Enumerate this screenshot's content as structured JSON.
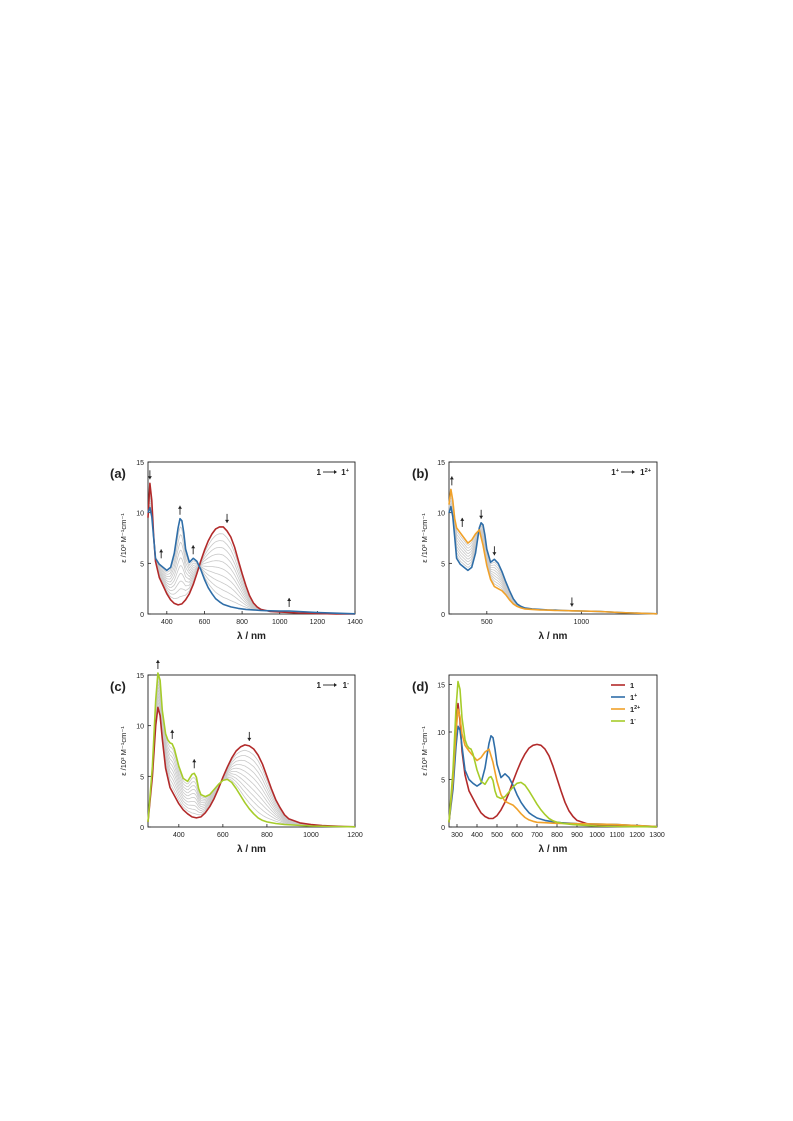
{
  "colors": {
    "neutral": "#b22a2a",
    "cation": "#2f6ea8",
    "dication": "#f0a12a",
    "anion": "#a6cc2a",
    "intermediate": "#c9c9c9",
    "axis": "#222222"
  },
  "chart_data": [
    {
      "id": "a",
      "type": "line",
      "panel_label": "(a)",
      "annotation": {
        "from": "1",
        "to": "1",
        "to_sup": "+"
      },
      "xlabel": "λ / nm",
      "ylabel": "ε /10³ M⁻¹cm⁻¹",
      "xlim": [
        300,
        1400
      ],
      "ylim": [
        0,
        15
      ],
      "xticks": [
        400,
        600,
        800,
        1000,
        1200,
        1400
      ],
      "yticks": [
        0,
        5,
        10,
        15
      ],
      "intermediates": 10,
      "series": [
        {
          "key": "neutral",
          "x": [
            300,
            310,
            320,
            330,
            340,
            360,
            380,
            400,
            420,
            440,
            460,
            480,
            500,
            520,
            540,
            560,
            580,
            600,
            620,
            640,
            660,
            680,
            700,
            720,
            740,
            760,
            780,
            800,
            820,
            840,
            860,
            880,
            900,
            950,
            1000,
            1050,
            1100,
            1200,
            1300,
            1400
          ],
          "y": [
            9.5,
            12.9,
            11.2,
            7.8,
            5.2,
            3.6,
            2.8,
            2.0,
            1.4,
            1.05,
            0.9,
            1.0,
            1.4,
            2.0,
            2.9,
            4.0,
            5.2,
            6.3,
            7.2,
            7.9,
            8.4,
            8.6,
            8.6,
            8.2,
            7.6,
            6.6,
            5.3,
            4.0,
            2.8,
            1.8,
            1.1,
            0.7,
            0.45,
            0.25,
            0.2,
            0.15,
            0.1,
            0.05,
            0.0,
            0.0
          ]
        },
        {
          "key": "cation",
          "x": [
            300,
            310,
            320,
            330,
            340,
            360,
            380,
            400,
            420,
            440,
            460,
            470,
            480,
            490,
            500,
            520,
            540,
            560,
            580,
            600,
            620,
            640,
            660,
            680,
            700,
            740,
            780,
            820,
            860,
            900,
            950,
            1000,
            1050,
            1100,
            1200,
            1300,
            1400
          ],
          "y": [
            10.0,
            10.5,
            9.6,
            7.6,
            5.5,
            4.9,
            4.6,
            4.3,
            4.6,
            6.0,
            8.5,
            9.4,
            9.2,
            8.0,
            6.4,
            5.1,
            5.5,
            5.2,
            4.4,
            3.4,
            2.6,
            2.0,
            1.5,
            1.2,
            0.95,
            0.7,
            0.55,
            0.45,
            0.4,
            0.35,
            0.32,
            0.3,
            0.3,
            0.25,
            0.15,
            0.08,
            0.02
          ]
        }
      ],
      "arrows": [
        {
          "x": 310,
          "y": 12.9,
          "dir": "down"
        },
        {
          "x": 370,
          "y": 5.1,
          "dir": "up"
        },
        {
          "x": 470,
          "y": 9.4,
          "dir": "up"
        },
        {
          "x": 540,
          "y": 5.5,
          "dir": "up"
        },
        {
          "x": 720,
          "y": 8.6,
          "dir": "down"
        },
        {
          "x": 1050,
          "y": 0.3,
          "dir": "up"
        }
      ]
    },
    {
      "id": "b",
      "type": "line",
      "panel_label": "(b)",
      "annotation": {
        "from": "1",
        "from_sup": "+",
        "to": "1",
        "to_sup": "2+"
      },
      "xlabel": "λ / nm",
      "ylabel": "ε /10³ M⁻¹cm⁻¹",
      "xlim": [
        300,
        1400
      ],
      "ylim": [
        0,
        15
      ],
      "xticks": [
        500,
        1000
      ],
      "yticks": [
        0,
        5,
        10,
        15
      ],
      "intermediates": 9,
      "series": [
        {
          "key": "cation",
          "x": [
            300,
            310,
            320,
            330,
            340,
            360,
            380,
            400,
            420,
            440,
            460,
            470,
            480,
            490,
            500,
            520,
            540,
            560,
            580,
            600,
            620,
            640,
            660,
            680,
            700,
            740,
            780,
            820,
            860,
            900,
            950,
            1000,
            1100,
            1200,
            1300,
            1400
          ],
          "y": [
            10.0,
            10.6,
            9.6,
            7.6,
            5.5,
            4.9,
            4.6,
            4.3,
            4.6,
            6.0,
            8.5,
            9.0,
            8.8,
            7.8,
            6.4,
            5.1,
            5.4,
            5.0,
            4.2,
            3.2,
            2.3,
            1.5,
            1.0,
            0.75,
            0.6,
            0.5,
            0.45,
            0.4,
            0.38,
            0.35,
            0.32,
            0.3,
            0.25,
            0.15,
            0.08,
            0.02
          ]
        },
        {
          "key": "dication",
          "x": [
            300,
            310,
            320,
            330,
            340,
            360,
            380,
            400,
            420,
            440,
            460,
            480,
            500,
            520,
            540,
            560,
            580,
            600,
            620,
            640,
            660,
            680,
            700,
            740,
            780,
            820,
            860,
            900,
            950,
            1000,
            1100,
            1200,
            1300,
            1400
          ],
          "y": [
            10.8,
            12.3,
            11.2,
            9.4,
            8.5,
            8.0,
            7.5,
            7.0,
            7.3,
            7.9,
            8.3,
            6.8,
            4.8,
            3.4,
            2.7,
            2.5,
            2.3,
            1.9,
            1.4,
            1.0,
            0.75,
            0.6,
            0.5,
            0.45,
            0.4,
            0.38,
            0.36,
            0.35,
            0.32,
            0.3,
            0.25,
            0.15,
            0.08,
            0.02
          ]
        }
      ],
      "arrows": [
        {
          "x": 315,
          "y": 12.3,
          "dir": "up"
        },
        {
          "x": 370,
          "y": 8.2,
          "dir": "up"
        },
        {
          "x": 470,
          "y": 9.0,
          "dir": "down"
        },
        {
          "x": 540,
          "y": 5.4,
          "dir": "down"
        },
        {
          "x": 950,
          "y": 0.35,
          "dir": "down"
        }
      ]
    },
    {
      "id": "c",
      "type": "line",
      "panel_label": "(c)",
      "annotation": {
        "from": "1",
        "to": "1",
        "to_sup": "-"
      },
      "xlabel": "λ / nm",
      "ylabel": "ε /10³ M⁻¹cm⁻¹",
      "xlim": [
        260,
        1200
      ],
      "ylim": [
        0,
        15
      ],
      "xticks": [
        400,
        600,
        800,
        1000,
        1200
      ],
      "yticks": [
        0,
        5,
        10,
        15
      ],
      "intermediates": 10,
      "series": [
        {
          "key": "neutral",
          "x": [
            260,
            280,
            295,
            305,
            315,
            325,
            340,
            360,
            380,
            400,
            420,
            440,
            460,
            480,
            500,
            520,
            540,
            560,
            580,
            600,
            620,
            640,
            660,
            680,
            700,
            720,
            740,
            760,
            780,
            800,
            820,
            840,
            860,
            880,
            900,
            950,
            1000,
            1050,
            1100,
            1150,
            1200
          ],
          "y": [
            0.5,
            5.0,
            10.0,
            11.8,
            11.0,
            8.7,
            5.8,
            3.9,
            3.1,
            2.3,
            1.7,
            1.3,
            1.0,
            0.9,
            1.0,
            1.4,
            2.0,
            2.8,
            3.8,
            4.9,
            5.9,
            6.8,
            7.5,
            7.9,
            8.1,
            8.0,
            7.7,
            7.1,
            6.2,
            5.0,
            3.8,
            2.7,
            1.9,
            1.2,
            0.8,
            0.4,
            0.25,
            0.15,
            0.1,
            0.05,
            0.02
          ]
        },
        {
          "key": "anion",
          "x": [
            260,
            280,
            295,
            305,
            315,
            325,
            340,
            350,
            360,
            370,
            380,
            400,
            420,
            440,
            460,
            470,
            480,
            490,
            500,
            520,
            540,
            560,
            580,
            600,
            620,
            640,
            660,
            680,
            700,
            720,
            740,
            760,
            780,
            800,
            840,
            880,
            920,
            960,
            1000,
            1100,
            1200
          ],
          "y": [
            0.5,
            6.0,
            12.5,
            15.2,
            14.5,
            11.5,
            9.2,
            8.6,
            8.3,
            8.2,
            7.7,
            6.0,
            4.8,
            4.5,
            5.2,
            5.3,
            4.9,
            3.8,
            3.2,
            3.0,
            3.2,
            3.7,
            4.2,
            4.6,
            4.7,
            4.4,
            3.8,
            3.1,
            2.4,
            1.8,
            1.3,
            0.9,
            0.65,
            0.5,
            0.35,
            0.25,
            0.2,
            0.15,
            0.1,
            0.05,
            0.02
          ]
        }
      ],
      "arrows": [
        {
          "x": 305,
          "y": 15.2,
          "dir": "up"
        },
        {
          "x": 370,
          "y": 8.3,
          "dir": "up"
        },
        {
          "x": 470,
          "y": 5.4,
          "dir": "up"
        },
        {
          "x": 720,
          "y": 8.1,
          "dir": "down"
        }
      ]
    },
    {
      "id": "d",
      "type": "line",
      "panel_label": "(d)",
      "xlabel": "λ / nm",
      "ylabel": "ε /10³ M⁻¹cm⁻¹",
      "xlim": [
        260,
        1300
      ],
      "ylim": [
        0,
        16
      ],
      "xticks": [
        300,
        400,
        500,
        600,
        700,
        800,
        900,
        1000,
        1100,
        1200,
        1300
      ],
      "yticks": [
        0,
        5,
        10,
        15
      ],
      "legend": {
        "placement": "top-right",
        "entries": [
          {
            "key": "neutral",
            "label": "1",
            "sup": ""
          },
          {
            "key": "cation",
            "label": "1",
            "sup": "+"
          },
          {
            "key": "dication",
            "label": "1",
            "sup": "2+"
          },
          {
            "key": "anion",
            "label": "1",
            "sup": "-"
          }
        ]
      },
      "series": [
        {
          "key": "neutral",
          "x": [
            260,
            280,
            295,
            305,
            315,
            325,
            340,
            360,
            380,
            400,
            420,
            440,
            460,
            480,
            500,
            520,
            540,
            560,
            580,
            600,
            620,
            640,
            660,
            680,
            700,
            720,
            740,
            760,
            780,
            800,
            820,
            840,
            860,
            880,
            900,
            950,
            1000,
            1100,
            1200,
            1300
          ],
          "y": [
            0.5,
            5.0,
            11.0,
            13.0,
            11.2,
            8.0,
            5.5,
            3.8,
            3.0,
            2.2,
            1.5,
            1.1,
            0.9,
            0.9,
            1.2,
            1.8,
            2.6,
            3.6,
            4.8,
            5.9,
            6.9,
            7.7,
            8.3,
            8.6,
            8.7,
            8.6,
            8.2,
            7.5,
            6.4,
            5.1,
            3.8,
            2.6,
            1.7,
            1.1,
            0.7,
            0.35,
            0.2,
            0.1,
            0.05,
            0.0
          ]
        },
        {
          "key": "cation",
          "x": [
            260,
            280,
            295,
            305,
            315,
            325,
            340,
            360,
            380,
            400,
            420,
            440,
            460,
            470,
            480,
            490,
            500,
            520,
            540,
            560,
            580,
            600,
            620,
            640,
            660,
            680,
            700,
            740,
            780,
            820,
            860,
            900,
            1000,
            1100,
            1200,
            1300
          ],
          "y": [
            0.5,
            4.0,
            8.5,
            10.6,
            10.2,
            8.5,
            6.0,
            5.0,
            4.6,
            4.3,
            4.6,
            6.2,
            8.8,
            9.6,
            9.4,
            8.2,
            6.6,
            5.2,
            5.6,
            5.2,
            4.4,
            3.4,
            2.6,
            2.0,
            1.5,
            1.2,
            0.95,
            0.7,
            0.55,
            0.45,
            0.4,
            0.35,
            0.3,
            0.25,
            0.15,
            0.05
          ]
        },
        {
          "key": "dication",
          "x": [
            260,
            280,
            295,
            305,
            315,
            325,
            340,
            360,
            380,
            400,
            420,
            440,
            460,
            480,
            500,
            520,
            540,
            560,
            580,
            600,
            620,
            640,
            660,
            680,
            700,
            740,
            780,
            820,
            860,
            900,
            1000,
            1100,
            1200,
            1300
          ],
          "y": [
            0.5,
            5.0,
            10.0,
            12.4,
            11.6,
            9.8,
            8.6,
            8.0,
            7.5,
            7.0,
            7.3,
            7.9,
            8.2,
            6.8,
            4.8,
            3.4,
            2.7,
            2.5,
            2.3,
            1.9,
            1.4,
            1.0,
            0.75,
            0.6,
            0.5,
            0.45,
            0.4,
            0.38,
            0.36,
            0.35,
            0.3,
            0.25,
            0.15,
            0.05
          ]
        },
        {
          "key": "anion",
          "x": [
            260,
            280,
            295,
            305,
            315,
            325,
            340,
            350,
            360,
            370,
            380,
            400,
            420,
            440,
            460,
            470,
            480,
            490,
            500,
            520,
            540,
            560,
            580,
            600,
            620,
            640,
            660,
            680,
            700,
            720,
            740,
            760,
            780,
            800,
            840,
            880,
            920,
            960,
            1000,
            1100,
            1200,
            1300
          ],
          "y": [
            0.5,
            6.0,
            12.5,
            15.3,
            14.5,
            11.5,
            9.2,
            8.6,
            8.3,
            8.2,
            7.7,
            6.0,
            4.8,
            4.5,
            5.2,
            5.3,
            4.9,
            3.8,
            3.2,
            3.0,
            3.2,
            3.7,
            4.2,
            4.6,
            4.7,
            4.4,
            3.8,
            3.1,
            2.4,
            1.8,
            1.3,
            0.9,
            0.65,
            0.5,
            0.35,
            0.25,
            0.2,
            0.15,
            0.1,
            0.05,
            0.03,
            0.02
          ]
        }
      ]
    }
  ]
}
